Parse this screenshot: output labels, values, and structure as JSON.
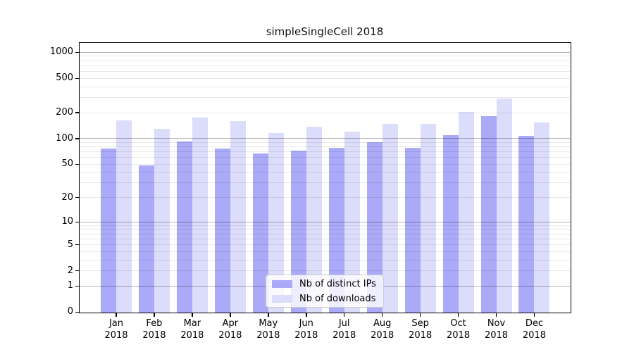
{
  "title": "simpleSingleCell 2018",
  "chart_data": {
    "type": "bar",
    "title": "simpleSingleCell 2018",
    "categories": [
      "Jan 2018",
      "Feb 2018",
      "Mar 2018",
      "Apr 2018",
      "May 2018",
      "Jun 2018",
      "Jul 2018",
      "Aug 2018",
      "Sep 2018",
      "Oct 2018",
      "Nov 2018",
      "Dec 2018"
    ],
    "series": [
      {
        "name": "Nb of distinct IPs",
        "color": "#aaaaf8",
        "values": [
          76,
          48,
          93,
          76,
          67,
          72,
          78,
          90,
          78,
          110,
          182,
          108
        ]
      },
      {
        "name": "Nb of downloads",
        "color": "#dcdcfb",
        "values": [
          163,
          131,
          175,
          159,
          117,
          137,
          121,
          147,
          148,
          205,
          290,
          153
        ]
      }
    ],
    "xlabel": "",
    "ylabel": "",
    "yscale": "log1p",
    "yticks": [
      0,
      1,
      2,
      5,
      10,
      20,
      50,
      100,
      200,
      500,
      1000
    ],
    "ylim": [
      0,
      1260
    ],
    "grid": true,
    "grid_major_color": "#b3b3b3",
    "grid_minor_color": "#e9e9e9",
    "legend_position": "lower center"
  }
}
